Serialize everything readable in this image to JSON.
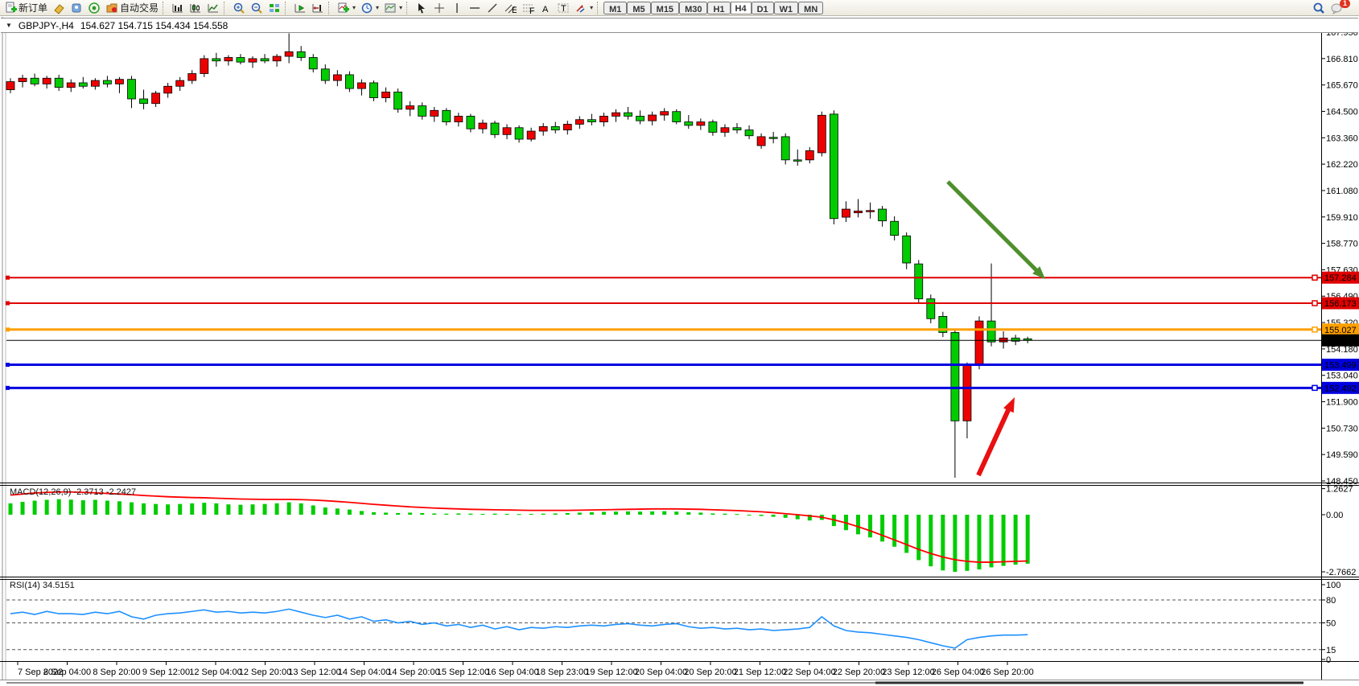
{
  "toolbar": {
    "new_order_label": "新订单",
    "autotrading_label": "自动交易",
    "timeframes": [
      "M1",
      "M5",
      "M15",
      "M30",
      "H1",
      "H4",
      "D1",
      "W1",
      "MN"
    ],
    "active_timeframe": "H4",
    "notification_count": "1"
  },
  "chart": {
    "title_symbol": "GBPJPY-,H4",
    "title_ohlc": "154.627 154.715 154.434 154.558",
    "collapse_icon": "▼"
  },
  "indicators": {
    "macd": {
      "label": "MACD(12,26,9) -2.3713 -2.2427"
    },
    "rsi": {
      "label": "RSI(14) 34.5151"
    }
  },
  "annotations": {
    "down_arrow_color": "#4e8f2c",
    "up_arrow_color": "#e81010"
  },
  "chart_data": {
    "type": "candlestick",
    "symbol": "GBPJPY-",
    "timeframe": "H4",
    "last_ohlc": {
      "open": 154.627,
      "high": 154.715,
      "low": 154.434,
      "close": 154.558
    },
    "ylim": [
      148.45,
      167.95
    ],
    "color_convention": {
      "bull": "#ee0000",
      "bear": "#00cc00",
      "note": "red=up green=down"
    },
    "price_axis_labels": [
      "167.950",
      "166.810",
      "165.670",
      "164.500",
      "163.360",
      "162.220",
      "161.080",
      "159.910",
      "158.770",
      "157.630",
      "156.490",
      "155.320",
      "154.180",
      "153.040",
      "151.900",
      "150.730",
      "149.590",
      "148.450"
    ],
    "time_labels": [
      "7 Sep 2022",
      "8 Sep 04:00",
      "8 Sep 20:00",
      "9 Sep 12:00",
      "12 Sep 04:00",
      "12 Sep 20:00",
      "13 Sep 12:00",
      "14 Sep 04:00",
      "14 Sep 20:00",
      "15 Sep 12:00",
      "16 Sep 04:00",
      "18 Sep 23:00",
      "19 Sep 12:00",
      "20 Sep 04:00",
      "20 Sep 20:00",
      "21 Sep 12:00",
      "22 Sep 04:00",
      "22 Sep 20:00",
      "23 Sep 12:00",
      "26 Sep 04:00",
      "26 Sep 20:00"
    ],
    "horizontal_lines": [
      {
        "value": "157.284",
        "price": 157.284,
        "color": "#e00000",
        "width": 2,
        "marker": true,
        "handle": true
      },
      {
        "value": "156.173",
        "price": 156.173,
        "color": "#e00000",
        "width": 2,
        "marker": true,
        "handle": true
      },
      {
        "value": "155.027",
        "price": 155.027,
        "color": "#ffa000",
        "width": 3,
        "marker": true,
        "handle": true
      },
      {
        "value": "154.558",
        "price": 154.558,
        "color": "#000000",
        "width": 1,
        "marker": false,
        "handle": false,
        "current": true
      },
      {
        "value": "153.499",
        "price": 153.499,
        "color": "#0000e0",
        "width": 3,
        "marker": false,
        "handle": true
      },
      {
        "value": "152.492",
        "price": 152.492,
        "color": "#0000e0",
        "width": 3,
        "marker": true,
        "handle": true
      }
    ],
    "candles": [
      [
        165.45,
        165.95,
        165.3,
        165.8
      ],
      [
        165.8,
        166.1,
        165.55,
        165.95
      ],
      [
        165.95,
        166.15,
        165.6,
        165.7
      ],
      [
        165.7,
        166.05,
        165.5,
        165.95
      ],
      [
        165.95,
        166.1,
        165.4,
        165.55
      ],
      [
        165.55,
        165.9,
        165.35,
        165.75
      ],
      [
        165.75,
        166.0,
        165.5,
        165.6
      ],
      [
        165.6,
        165.95,
        165.45,
        165.85
      ],
      [
        165.85,
        166.05,
        165.55,
        165.7
      ],
      [
        165.7,
        166.0,
        165.3,
        165.9
      ],
      [
        165.9,
        166.05,
        164.65,
        165.05
      ],
      [
        165.05,
        165.45,
        164.6,
        164.85
      ],
      [
        164.85,
        165.4,
        164.7,
        165.3
      ],
      [
        165.3,
        165.75,
        165.1,
        165.6
      ],
      [
        165.6,
        166.0,
        165.4,
        165.85
      ],
      [
        165.85,
        166.3,
        165.7,
        166.15
      ],
      [
        166.15,
        166.95,
        166.0,
        166.8
      ],
      [
        166.8,
        167.05,
        166.45,
        166.7
      ],
      [
        166.7,
        166.95,
        166.5,
        166.85
      ],
      [
        166.85,
        167.0,
        166.55,
        166.65
      ],
      [
        166.65,
        166.9,
        166.4,
        166.8
      ],
      [
        166.8,
        167.0,
        166.6,
        166.7
      ],
      [
        166.7,
        167.0,
        166.45,
        166.9
      ],
      [
        166.9,
        167.9,
        166.6,
        167.1
      ],
      [
        167.1,
        167.35,
        166.7,
        166.85
      ],
      [
        166.85,
        167.0,
        166.2,
        166.35
      ],
      [
        166.35,
        166.55,
        165.7,
        165.85
      ],
      [
        165.85,
        166.3,
        165.6,
        166.1
      ],
      [
        166.1,
        166.25,
        165.35,
        165.5
      ],
      [
        165.5,
        165.9,
        165.2,
        165.75
      ],
      [
        165.75,
        165.85,
        164.95,
        165.1
      ],
      [
        165.1,
        165.55,
        164.9,
        165.35
      ],
      [
        165.35,
        165.5,
        164.45,
        164.6
      ],
      [
        164.6,
        164.95,
        164.3,
        164.75
      ],
      [
        164.75,
        164.9,
        164.15,
        164.3
      ],
      [
        164.3,
        164.7,
        164.05,
        164.55
      ],
      [
        164.55,
        164.65,
        163.9,
        164.05
      ],
      [
        164.05,
        164.45,
        163.85,
        164.3
      ],
      [
        164.3,
        164.4,
        163.6,
        163.75
      ],
      [
        163.75,
        164.15,
        163.55,
        164.0
      ],
      [
        164.0,
        164.1,
        163.35,
        163.5
      ],
      [
        163.5,
        163.95,
        163.3,
        163.8
      ],
      [
        163.8,
        163.9,
        163.15,
        163.3
      ],
      [
        163.3,
        163.8,
        163.2,
        163.65
      ],
      [
        163.65,
        164.0,
        163.45,
        163.85
      ],
      [
        163.85,
        164.05,
        163.55,
        163.7
      ],
      [
        163.7,
        164.1,
        163.5,
        163.95
      ],
      [
        163.95,
        164.3,
        163.75,
        164.15
      ],
      [
        164.15,
        164.4,
        163.9,
        164.05
      ],
      [
        164.05,
        164.45,
        163.85,
        164.3
      ],
      [
        164.3,
        164.6,
        164.05,
        164.45
      ],
      [
        164.45,
        164.7,
        164.15,
        164.3
      ],
      [
        164.3,
        164.55,
        163.95,
        164.1
      ],
      [
        164.1,
        164.5,
        163.9,
        164.35
      ],
      [
        164.35,
        164.65,
        164.1,
        164.5
      ],
      [
        164.5,
        164.6,
        163.95,
        164.05
      ],
      [
        164.05,
        164.35,
        163.75,
        163.9
      ],
      [
        163.9,
        164.2,
        163.7,
        164.05
      ],
      [
        164.05,
        164.15,
        163.45,
        163.6
      ],
      [
        163.6,
        163.95,
        163.4,
        163.8
      ],
      [
        163.8,
        164.0,
        163.55,
        163.7
      ],
      [
        163.7,
        163.9,
        163.3,
        163.45
      ],
      [
        163.02,
        163.55,
        162.88,
        163.41
      ],
      [
        163.38,
        163.62,
        163.12,
        163.35
      ],
      [
        163.41,
        163.55,
        162.2,
        162.4
      ],
      [
        162.4,
        162.85,
        162.15,
        162.38
      ],
      [
        162.4,
        162.95,
        162.25,
        162.8
      ],
      [
        162.71,
        164.5,
        162.55,
        164.34
      ],
      [
        164.39,
        164.55,
        159.6,
        159.85
      ],
      [
        159.91,
        160.6,
        159.7,
        160.26
      ],
      [
        160.1,
        160.7,
        159.9,
        160.18
      ],
      [
        160.18,
        160.55,
        159.85,
        160.2
      ],
      [
        160.26,
        160.4,
        159.5,
        159.75
      ],
      [
        159.73,
        159.95,
        158.9,
        159.12
      ],
      [
        159.1,
        159.25,
        157.65,
        157.92
      ],
      [
        157.88,
        158.05,
        156.15,
        156.36
      ],
      [
        156.36,
        156.55,
        155.3,
        155.5
      ],
      [
        155.6,
        155.8,
        154.7,
        154.9
      ],
      [
        154.9,
        155.0,
        148.59,
        151.06
      ],
      [
        151.06,
        153.6,
        150.3,
        153.48
      ],
      [
        153.48,
        155.6,
        153.3,
        155.4
      ],
      [
        155.4,
        157.9,
        154.3,
        154.49
      ],
      [
        154.49,
        154.95,
        154.2,
        154.66
      ],
      [
        154.66,
        154.8,
        154.35,
        154.52
      ],
      [
        154.627,
        154.715,
        154.434,
        154.558
      ]
    ],
    "macd": {
      "label": "MACD(12,26,9) -2.3713 -2.2427",
      "ylim": [
        -2.7662,
        1.2627
      ],
      "axis_labels": [
        "1.2627",
        "0.00",
        "-2.7662"
      ],
      "histogram_color": "#00cc00",
      "signal_color": "#ff0000",
      "histogram": [
        0.55,
        0.62,
        0.68,
        0.72,
        0.75,
        0.73,
        0.7,
        0.72,
        0.68,
        0.65,
        0.6,
        0.55,
        0.52,
        0.5,
        0.52,
        0.55,
        0.58,
        0.55,
        0.5,
        0.48,
        0.5,
        0.52,
        0.55,
        0.6,
        0.55,
        0.45,
        0.35,
        0.3,
        0.25,
        0.18,
        0.12,
        0.1,
        0.08,
        0.1,
        0.08,
        0.06,
        0.05,
        0.06,
        0.05,
        0.04,
        0.05,
        0.04,
        0.03,
        0.04,
        0.05,
        0.06,
        0.08,
        0.1,
        0.12,
        0.14,
        0.15,
        0.16,
        0.15,
        0.16,
        0.17,
        0.15,
        0.12,
        0.1,
        0.06,
        0.05,
        0.03,
        -0.02,
        -0.06,
        -0.1,
        -0.15,
        -0.22,
        -0.28,
        -0.25,
        -0.55,
        -0.75,
        -0.95,
        -1.1,
        -1.3,
        -1.55,
        -1.85,
        -2.2,
        -2.5,
        -2.7,
        -2.7662,
        -2.72,
        -2.65,
        -2.55,
        -2.48,
        -2.42,
        -2.3713
      ],
      "signal": [
        0.95,
        1.0,
        1.05,
        1.08,
        1.1,
        1.1,
        1.08,
        1.06,
        1.03,
        1.0,
        0.97,
        0.93,
        0.9,
        0.87,
        0.85,
        0.83,
        0.82,
        0.8,
        0.78,
        0.76,
        0.75,
        0.74,
        0.74,
        0.74,
        0.73,
        0.71,
        0.68,
        0.64,
        0.6,
        0.55,
        0.5,
        0.46,
        0.42,
        0.38,
        0.35,
        0.32,
        0.3,
        0.28,
        0.26,
        0.25,
        0.24,
        0.23,
        0.22,
        0.21,
        0.21,
        0.21,
        0.21,
        0.22,
        0.23,
        0.24,
        0.25,
        0.26,
        0.27,
        0.28,
        0.28,
        0.28,
        0.27,
        0.26,
        0.24,
        0.22,
        0.2,
        0.17,
        0.14,
        0.1,
        0.05,
        0.0,
        -0.06,
        -0.12,
        -0.25,
        -0.4,
        -0.58,
        -0.78,
        -1.0,
        -1.22,
        -1.45,
        -1.68,
        -1.88,
        -2.05,
        -2.18,
        -2.26,
        -2.3,
        -2.3,
        -2.28,
        -2.26,
        -2.2427
      ]
    },
    "rsi": {
      "label": "RSI(14) 34.5151",
      "ylim": [
        0,
        100
      ],
      "axis_labels": [
        "100",
        "80",
        "50",
        "15",
        "0"
      ],
      "levels": [
        80,
        50,
        15
      ],
      "line_color": "#1e90ff",
      "values": [
        62,
        64,
        61,
        65,
        62,
        62,
        61,
        64,
        62,
        65,
        58,
        55,
        60,
        62,
        63,
        65,
        67,
        64,
        65,
        63,
        64,
        63,
        65,
        68,
        64,
        60,
        57,
        60,
        55,
        58,
        52,
        54,
        50,
        52,
        48,
        50,
        46,
        48,
        44,
        47,
        42,
        45,
        41,
        44,
        43,
        45,
        44,
        46,
        47,
        46,
        48,
        49,
        47,
        46,
        48,
        49,
        45,
        43,
        44,
        42,
        43,
        41,
        42,
        40,
        41,
        42,
        44,
        58,
        46,
        40,
        38,
        37,
        35,
        33,
        31,
        28,
        24,
        20,
        17,
        28,
        31,
        33,
        34,
        34,
        34.5151
      ]
    }
  }
}
